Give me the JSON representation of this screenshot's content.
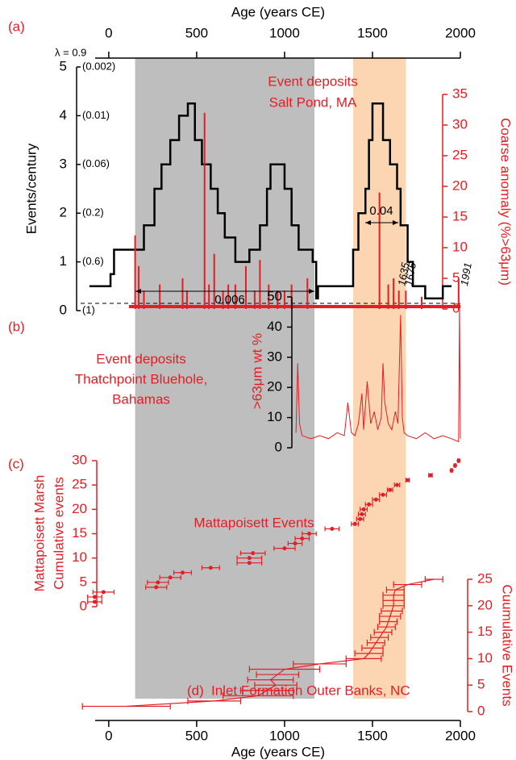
{
  "chart_data": [
    {
      "type": "line",
      "label": "(a)",
      "title": [
        "Event deposits",
        "Salt Pond, MA"
      ],
      "xlabel": "Age (years CE)",
      "xlim": [
        -160,
        2000
      ],
      "xticks": [
        0,
        500,
        1000,
        1500,
        2000
      ],
      "ylabel": "Events/century",
      "ylim": [
        0,
        5
      ],
      "yticks": [
        0,
        1,
        2,
        3,
        4,
        5
      ],
      "lambda_title": "λ = 0.9",
      "lambda_labels": [
        "(1)",
        "(0.6)",
        "(0.2)",
        "(0.06)",
        "(0.01)",
        "(0.002)"
      ],
      "y2label": "Coarse anomaly (%>63μm)",
      "y2lim": [
        0,
        35
      ],
      "y2ticks": [
        0,
        5,
        10,
        15,
        20,
        25,
        30,
        35
      ],
      "shaded_spans": [
        {
          "from": 150,
          "to": 1170,
          "color": "#bebebe"
        },
        {
          "from": 1390,
          "to": 1690,
          "color": "#fcd5b2"
        }
      ],
      "annotations": [
        "0.006",
        "0.04"
      ],
      "year_labels": [
        1635,
        1675,
        1991
      ],
      "series": [
        {
          "type": "line",
          "color": "#000000",
          "x": [
            -110,
            10,
            10,
            30,
            30,
            200,
            200,
            260,
            260,
            300,
            300,
            350,
            350,
            400,
            400,
            450,
            450,
            490,
            490,
            530,
            530,
            580,
            580,
            620,
            620,
            660,
            660,
            720,
            720,
            800,
            800,
            860,
            860,
            900,
            900,
            920,
            920,
            1000,
            1000,
            1040,
            1040,
            1080,
            1080,
            1160,
            1160,
            1180,
            1180,
            1190,
            1190,
            1390,
            1390,
            1420,
            1420,
            1460,
            1460,
            1480,
            1480,
            1500,
            1500,
            1560,
            1560,
            1600,
            1600,
            1640,
            1640,
            1660,
            1660,
            1700,
            1700,
            1730,
            1730,
            1800,
            1800,
            1900,
            1900,
            1950
          ],
          "values": [
            0.5,
            0.5,
            0.75,
            0.75,
            1.25,
            1.25,
            1.75,
            1.75,
            2.5,
            2.5,
            3,
            3,
            3.5,
            3.5,
            4,
            4,
            4.25,
            4.25,
            3.5,
            3.5,
            3,
            3,
            2.5,
            2.5,
            2,
            2,
            1.5,
            1.5,
            1,
            1,
            1.25,
            1.25,
            1.75,
            1.75,
            2.5,
            2.5,
            3,
            3,
            2.5,
            2.5,
            1.75,
            1.75,
            1.25,
            1.25,
            1,
            1,
            0.25,
            0.25,
            0.5,
            0.5,
            1.25,
            1.25,
            2,
            2,
            2.5,
            2.5,
            3.5,
            3.5,
            4.25,
            4.25,
            3.5,
            3.5,
            3,
            3,
            2.5,
            2.5,
            1.75,
            1.75,
            1,
            1,
            0.5,
            0.5,
            0.25,
            0.25,
            0.5,
            0.5
          ]
        },
        {
          "type": "bar",
          "axis": "y2",
          "color": "#e31e24",
          "x": [
            150,
            170,
            200,
            290,
            420,
            445,
            545,
            570,
            600,
            650,
            680,
            720,
            780,
            830,
            860,
            910,
            960,
            1000,
            1040,
            1130,
            1540,
            1590,
            1620,
            1650,
            1690,
            1780,
            1990
          ],
          "values": [
            12,
            7,
            3,
            4,
            5,
            3,
            32,
            4,
            9,
            3,
            4,
            4,
            7,
            3,
            8,
            4,
            3,
            3,
            4,
            5,
            19,
            4,
            5,
            3,
            3,
            2,
            5
          ]
        }
      ]
    },
    {
      "type": "line",
      "label": "(b)",
      "title": [
        "Event deposits",
        "Thatchpoint Bluehole,",
        "Bahamas"
      ],
      "xlim": [
        -160,
        2000
      ],
      "ylabel": ">63μm wt %",
      "ylim": [
        0,
        50
      ],
      "yticks": [
        0,
        10,
        20,
        30,
        40,
        50
      ],
      "color": "#e31e24",
      "x": [
        1065,
        1075,
        1085,
        1100,
        1150,
        1200,
        1250,
        1300,
        1340,
        1360,
        1380,
        1400,
        1420,
        1440,
        1450,
        1470,
        1490,
        1510,
        1530,
        1550,
        1560,
        1570,
        1590,
        1610,
        1630,
        1645,
        1660,
        1670,
        1680,
        1700,
        1750,
        1800,
        1850,
        1900,
        1950,
        1990,
        1995,
        2000
      ],
      "values": [
        5,
        28,
        8,
        4,
        3,
        4,
        3,
        5,
        4,
        15,
        5,
        4,
        8,
        18,
        6,
        22,
        8,
        12,
        6,
        10,
        28,
        15,
        8,
        6,
        12,
        8,
        44,
        10,
        5,
        4,
        3,
        5,
        3,
        4,
        3,
        2,
        48,
        3
      ]
    },
    {
      "type": "scatter",
      "label": "(c)",
      "title": "Mattapoisett Events",
      "xlim": [
        -160,
        2000
      ],
      "ylabel": [
        "Mattapoisett Marsh",
        "Cumulative events"
      ],
      "ylim": [
        0,
        30
      ],
      "yticks": [
        0,
        5,
        10,
        15,
        20,
        25,
        30
      ],
      "color": "#e31e24",
      "x": [
        -80,
        -80,
        -30,
        270,
        280,
        350,
        420,
        580,
        800,
        800,
        820,
        1000,
        1060,
        1100,
        1140,
        1270,
        1400,
        1430,
        1440,
        1450,
        1480,
        1520,
        1560,
        1600,
        1640,
        1700,
        1830,
        1950,
        1970,
        1990
      ],
      "values": [
        1,
        2,
        3,
        4,
        5,
        6,
        7,
        8,
        9,
        10,
        11,
        12,
        13,
        14,
        15,
        16,
        17,
        18,
        19,
        20,
        21,
        22,
        23,
        24,
        25,
        26,
        27,
        28,
        29,
        30
      ],
      "xerr": [
        40,
        40,
        60,
        60,
        60,
        60,
        50,
        50,
        70,
        70,
        70,
        60,
        40,
        40,
        40,
        40,
        20,
        20,
        20,
        20,
        20,
        20,
        20,
        15,
        15,
        10,
        10,
        5,
        5,
        5
      ]
    },
    {
      "type": "errorbar",
      "label": "(d)",
      "title": "Inlet Formation Outer Banks, NC",
      "xlabel": "Age (years CE)",
      "xlim": [
        -160,
        2000
      ],
      "xticks": [
        0,
        500,
        1000,
        1500,
        2000
      ],
      "ylabel": "Cuumulative Events",
      "ylim": [
        0,
        25
      ],
      "yticks": [
        0,
        5,
        10,
        15,
        20,
        25
      ],
      "color": "#e31e24",
      "x": [
        100,
        600,
        850,
        900,
        950,
        920,
        960,
        1000,
        1200,
        1450,
        1480,
        1500,
        1520,
        1540,
        1560,
        1580,
        1590,
        1600,
        1610,
        1620,
        1620,
        1620,
        1630,
        1700,
        1850
      ],
      "values": [
        1,
        2,
        3,
        4,
        5,
        6,
        7,
        8,
        9,
        10,
        11,
        12,
        13,
        14,
        15,
        16,
        17,
        18,
        19,
        20,
        21,
        22,
        23,
        24,
        25
      ],
      "xerr": [
        250,
        150,
        200,
        150,
        120,
        130,
        120,
        200,
        150,
        100,
        80,
        60,
        50,
        50,
        50,
        50,
        50,
        60,
        60,
        60,
        60,
        60,
        50,
        80,
        50
      ]
    }
  ]
}
